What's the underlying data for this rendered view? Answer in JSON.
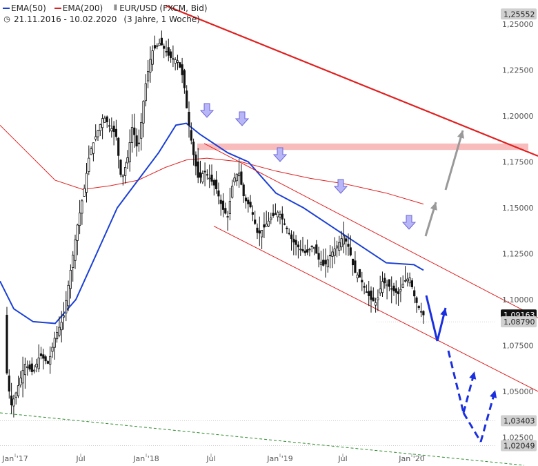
{
  "legend": {
    "ema50": "EMA(50)",
    "ema200": "EMA(200)",
    "symbol": "EUR/USD (FXCM, Bid)",
    "range": "21.11.2016 - 10.02.2020",
    "interval": "(3 Jahre, 1 Woche)",
    "ema50_color": "#1a3fd6",
    "ema200_color": "#e02020"
  },
  "chart_data": {
    "type": "candlestick",
    "ylim": [
      1.0155,
      1.2575
    ],
    "y_ticks": [
      "1,25000",
      "1,22500",
      "1,20000",
      "1,17500",
      "1,15000",
      "1,12500",
      "1,10000",
      "1,07500",
      "1,05000",
      "1,02500"
    ],
    "x_ticks": [
      "Jan '17",
      "Jul",
      "Jan '18",
      "Jul",
      "Jan '19",
      "Jul",
      "Jan '20"
    ],
    "price_tags": [
      {
        "label": "1,25552",
        "style": "grey"
      },
      {
        "label": "1,09163",
        "style": "dark"
      },
      {
        "label": "1,08790",
        "style": "grey"
      },
      {
        "label": "1,03403",
        "style": "grey"
      },
      {
        "label": "1,02049",
        "style": "grey"
      }
    ],
    "zone": {
      "from": 1.1815,
      "to": 1.185,
      "color": "#f8bcbc"
    },
    "annotation_colors": {
      "down_arrow": "#b9b6f7",
      "trend_red": "#e02020",
      "support_green": "#2a8a2a",
      "scenario_blue": "#1a2fe0",
      "scenario_grey": "#999999"
    }
  }
}
